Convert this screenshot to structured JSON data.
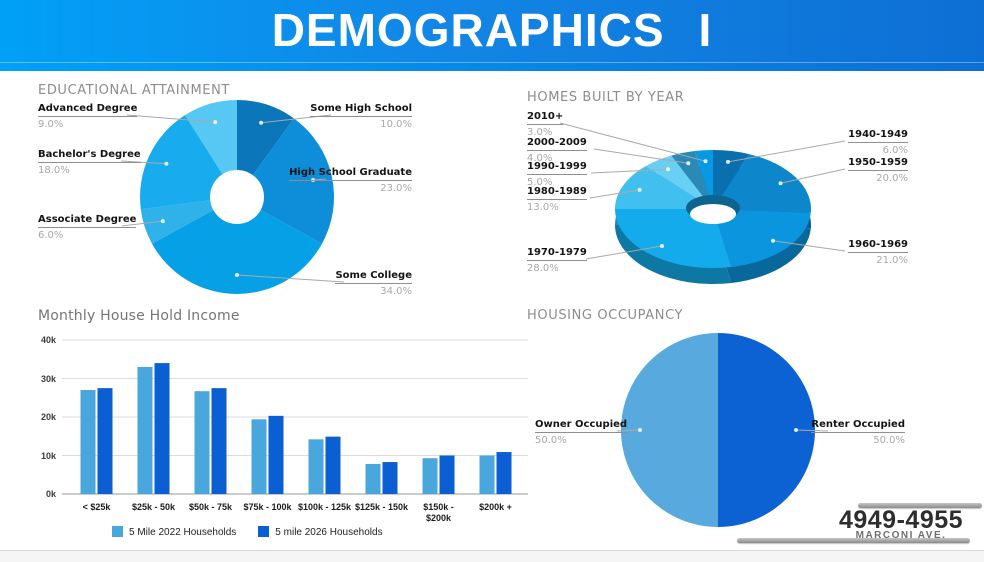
{
  "header": {
    "title": "DEMOGRAPHICS",
    "numeral": "I"
  },
  "sections": {
    "educational_attainment": {
      "title": "EDUCATIONAL ATTAINMENT"
    },
    "homes_built_by_year": {
      "title": "HOMES BUILT BY YEAR"
    },
    "monthly_household_income": {
      "title": "Monthly House Hold Income"
    },
    "housing_occupancy": {
      "title": "HOUSING OCCUPANCY"
    }
  },
  "chart_data": [
    {
      "id": "educational_attainment",
      "type": "pie",
      "subtype": "donut",
      "title": "EDUCATIONAL ATTAINMENT",
      "labels": [
        "Some High School",
        "High School Graduate",
        "Some College",
        "Associate Degree",
        "Bachelor's Degree",
        "Advanced Degree"
      ],
      "values": [
        10,
        23,
        34,
        6,
        18,
        9
      ],
      "display_values": [
        "10.0%",
        "23.0%",
        "34.0%",
        "6.0%",
        "18.0%",
        "9.0%"
      ],
      "colors": [
        "#0b76ba",
        "#0e8ed8",
        "#05a0e6",
        "#2fb1e9",
        "#18abee",
        "#56c8f3"
      ],
      "legend_position": "callouts"
    },
    {
      "id": "homes_built_by_year",
      "type": "pie",
      "subtype": "pie-3d-donut",
      "title": "HOMES BUILT BY YEAR",
      "labels": [
        "1940-1949",
        "1950-1959",
        "1960-1969",
        "1970-1979",
        "1980-1989",
        "1990-1999",
        "2000-2009",
        "2010+"
      ],
      "values": [
        6,
        20,
        21,
        28,
        13,
        5,
        4,
        3
      ],
      "display_values": [
        "6.0%",
        "20.0%",
        "21.0%",
        "28.0%",
        "13.0%",
        "5.0%",
        "4.0%",
        "3.0%"
      ],
      "colors": [
        "#0a6fae",
        "#0d86cc",
        "#0b95de",
        "#14abec",
        "#41c0f0",
        "#68cff5",
        "#2b89b6",
        "#0899e4"
      ],
      "legend_position": "callouts"
    },
    {
      "id": "monthly_household_income",
      "type": "bar",
      "title": "Monthly House Hold Income",
      "categories": [
        "< $25k",
        "$25k - 50k",
        "$50k - 75k",
        "$75k - 100k",
        "$100k - 125k",
        "$125k - 150k",
        "$150k - $200k",
        "$200k +"
      ],
      "series": [
        {
          "name": "5 Mile 2022 Households",
          "color": "#4aa7de",
          "values": [
            27,
            33,
            26.7,
            19.4,
            14.2,
            7.8,
            9.3,
            10
          ]
        },
        {
          "name": "5 mile 2026 Households",
          "color": "#0b5fd3",
          "values": [
            27.5,
            34,
            27.5,
            20.3,
            14.9,
            8.3,
            10,
            10.9
          ]
        }
      ],
      "unit": "thousands of households",
      "ylim": [
        0,
        40
      ],
      "yticks": [
        "0k",
        "10k",
        "20k",
        "30k",
        "40k"
      ],
      "grid": true,
      "legend_position": "bottom"
    },
    {
      "id": "housing_occupancy",
      "type": "pie",
      "title": "HOUSING OCCUPANCY",
      "labels": [
        "Owner Occupied",
        "Renter Occupied"
      ],
      "values": [
        50,
        50
      ],
      "display_values": [
        "50.0%",
        "50.0%"
      ],
      "colors": [
        "#58a9dd",
        "#0c62d2"
      ],
      "legend_position": "callouts"
    }
  ],
  "address": {
    "line1": "4949-4955",
    "line2": "MARCONI AVE."
  }
}
